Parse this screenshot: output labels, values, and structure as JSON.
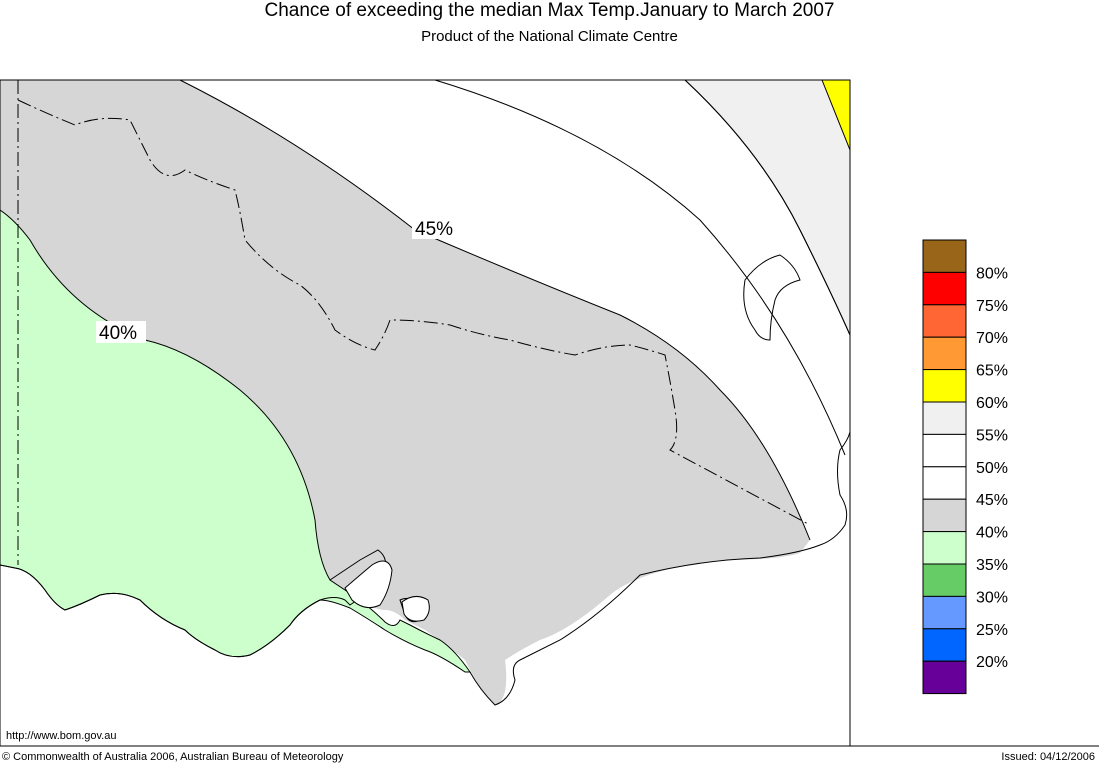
{
  "header": {
    "title": "Chance of exceeding the median Max Temp.January to March 2007",
    "subtitle": "Product of the National Climate Centre"
  },
  "map": {
    "contour_labels": [
      "45%",
      "40%"
    ],
    "region_colors": {
      "below_40": "#ccffcc",
      "from_40_to_45": "#d6d6d6",
      "from_45_to_55": "#ffffff",
      "from_55_to_60": "#f0f0f0",
      "above_60": "#ffff00"
    },
    "url": "http://www.bom.gov.au"
  },
  "legend": {
    "items": [
      {
        "label": "80%",
        "color": "#996619"
      },
      {
        "label": "75%",
        "color": "#ff0000"
      },
      {
        "label": "70%",
        "color": "#ff6633"
      },
      {
        "label": "65%",
        "color": "#ff9933"
      },
      {
        "label": "60%",
        "color": "#ffff00"
      },
      {
        "label": "55%",
        "color": "#f0f0f0"
      },
      {
        "label": "50%",
        "color": "#ffffff"
      },
      {
        "label": "45%",
        "color": "#ffffff"
      },
      {
        "label": "40%",
        "color": "#d6d6d6"
      },
      {
        "label": "35%",
        "color": "#ccffcc"
      },
      {
        "label": "30%",
        "color": "#66cc66"
      },
      {
        "label": "25%",
        "color": "#6699ff"
      },
      {
        "label": "20%",
        "color": "#0066ff"
      },
      {
        "label": "",
        "color": "#660099"
      }
    ]
  },
  "footer": {
    "copyright": "© Commonwealth of Australia 2006, Australian Bureau of Meteorology",
    "issued": "Issued: 04/12/2006"
  }
}
